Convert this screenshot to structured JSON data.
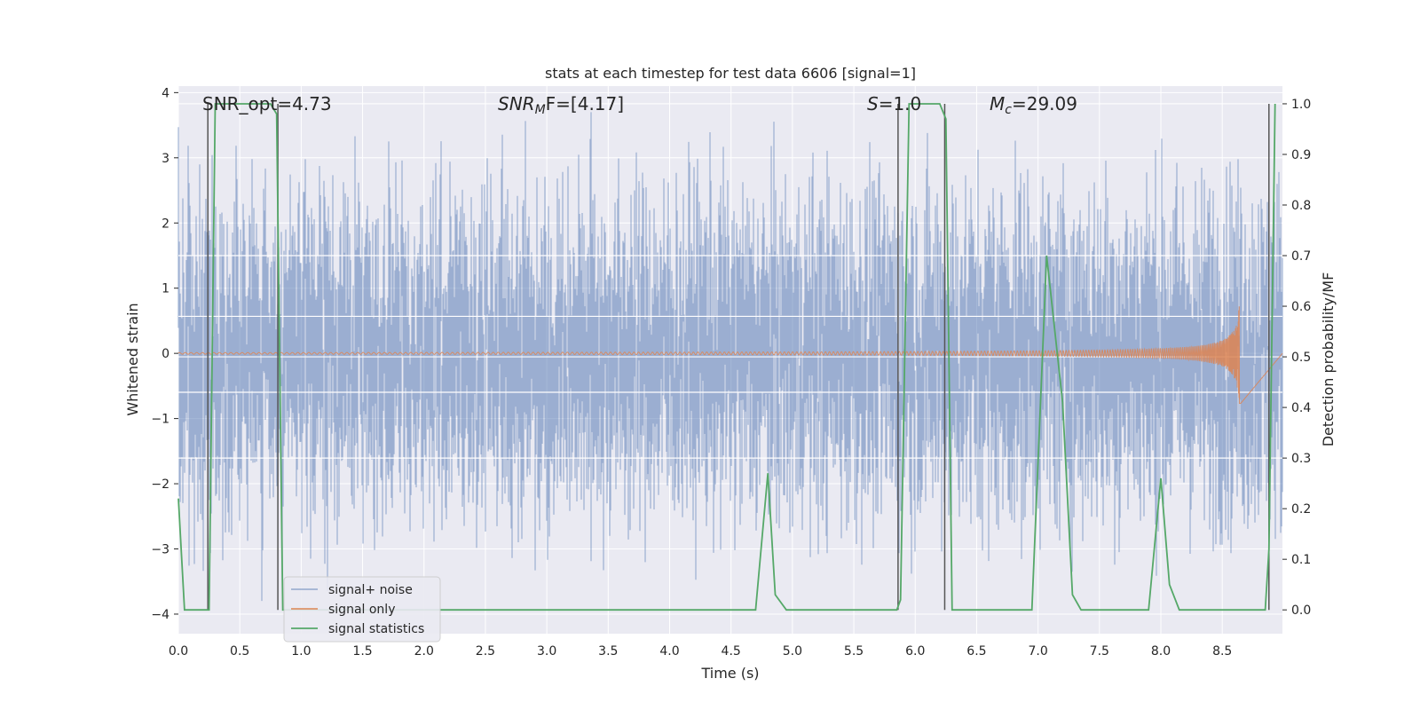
{
  "chart_data": {
    "type": "line",
    "title": "stats at each timestep for test data 6606 [signal=1]",
    "xlabel": "Time (s)",
    "ylabel_left": "Whitened strain",
    "ylabel_right": "Detection probability/MF",
    "xlim": [
      0.0,
      8.99
    ],
    "ylim_left": [
      -4.3,
      4.1
    ],
    "ylim_right": [
      -0.047,
      1.035
    ],
    "x_ticks": [
      "0.0",
      "0.5",
      "1.0",
      "1.5",
      "2.0",
      "2.5",
      "3.0",
      "3.5",
      "4.0",
      "4.5",
      "5.0",
      "5.5",
      "6.0",
      "6.5",
      "7.0",
      "7.5",
      "8.0",
      "8.5"
    ],
    "y_ticks_left": [
      "−4",
      "−3",
      "−2",
      "−1",
      "0",
      "1",
      "2",
      "3",
      "4"
    ],
    "y_ticks_right": [
      "0.0",
      "0.1",
      "0.2",
      "0.3",
      "0.4",
      "0.5",
      "0.6",
      "0.7",
      "0.8",
      "0.9",
      "1.0"
    ],
    "grid": true,
    "legend_position": "lower-left",
    "annotations": {
      "snr_opt": "SNR_opt=4.73",
      "snr_mf": "F=[4.17]",
      "snr_mf_base": "SNR",
      "snr_mf_sub": "M",
      "s_stat_var": "S",
      "s_stat_val": "=1.0",
      "mc_var": "M",
      "mc_sub": "c",
      "mc_val": "=29.09"
    },
    "series": [
      {
        "name": "signal+ noise",
        "color": "#4c72b0",
        "description_values": "noise band approx ±2.5, peaks up to 3.7 and down to -4.0"
      },
      {
        "name": "signal only",
        "color": "#dd8452",
        "chirp_end_time": 8.65,
        "chirp_peak_amplitude": 1.1
      },
      {
        "name": "signal statistics",
        "color": "#55a868",
        "x": [
          0.0,
          0.05,
          0.25,
          0.3,
          0.75,
          0.8,
          0.85,
          4.7,
          4.8,
          4.86,
          4.95,
          5.85,
          5.88,
          5.95,
          6.2,
          6.25,
          6.3,
          6.95,
          7.07,
          7.2,
          7.28,
          7.35,
          7.9,
          8.0,
          8.07,
          8.15,
          8.55,
          8.85,
          8.88,
          8.93
        ],
        "y": [
          0.22,
          0.0,
          0.0,
          1.0,
          1.0,
          0.98,
          0.0,
          0.0,
          0.27,
          0.03,
          0.0,
          0.0,
          0.02,
          1.0,
          1.0,
          0.97,
          0.0,
          0.0,
          0.7,
          0.41,
          0.03,
          0.0,
          0.0,
          0.26,
          0.05,
          0.0,
          0.0,
          0.0,
          0.12,
          1.0
        ]
      }
    ],
    "vlines": [
      0.24,
      0.81,
      5.86,
      6.24,
      8.88
    ],
    "hlines_right": [
      0.3,
      0.43,
      0.5,
      0.58,
      0.7,
      1.0
    ]
  }
}
